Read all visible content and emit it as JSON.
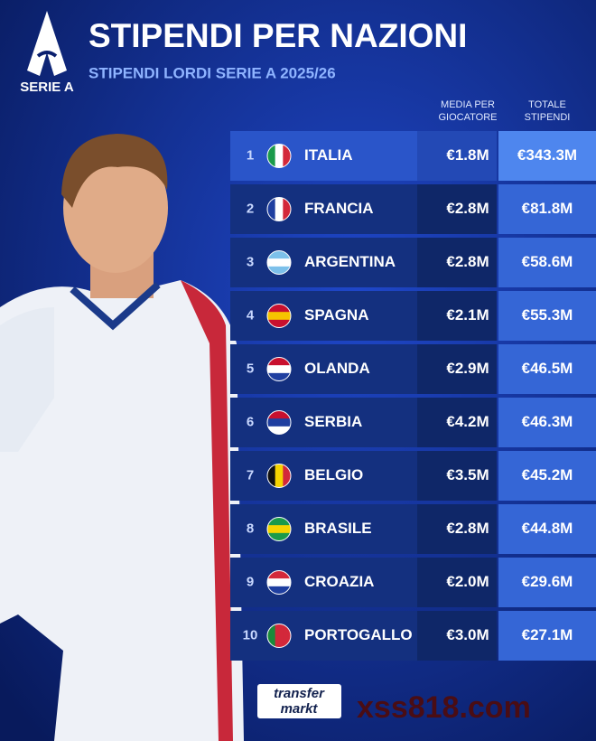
{
  "header": {
    "logo": "SERIE A",
    "title": "STIPENDI PER NAZIONI",
    "subtitle": "STIPENDI LORDI SERIE A 2025/26"
  },
  "table": {
    "columns": [
      "MEDIA PER GIOCATORE",
      "TOTALE STIPENDI"
    ],
    "rows": [
      [
        "1",
        "ITALIA",
        "€1.8M",
        "€343.3M"
      ],
      [
        "2",
        "FRANCIA",
        "€2.8M",
        "€81.8M"
      ],
      [
        "3",
        "ARGENTINA",
        "€2.8M",
        "€58.6M"
      ],
      [
        "4",
        "SPAGNA",
        "€2.1M",
        "€55.3M"
      ],
      [
        "5",
        "OLANDA",
        "€2.9M",
        "€46.5M"
      ],
      [
        "6",
        "SERBIA",
        "€4.2M",
        "€46.3M"
      ],
      [
        "7",
        "BELGIO",
        "€3.5M",
        "€45.2M"
      ],
      [
        "8",
        "BRASILE",
        "€2.8M",
        "€44.8M"
      ],
      [
        "9",
        "CROAZIA",
        "€2.0M",
        "€29.6M"
      ],
      [
        "10",
        "PORTOGALLO",
        "€3.0M",
        "€27.1M"
      ]
    ]
  },
  "footer": {
    "source_top": "transfer",
    "source_bottom": "markt",
    "watermark": "xss818.com"
  }
}
